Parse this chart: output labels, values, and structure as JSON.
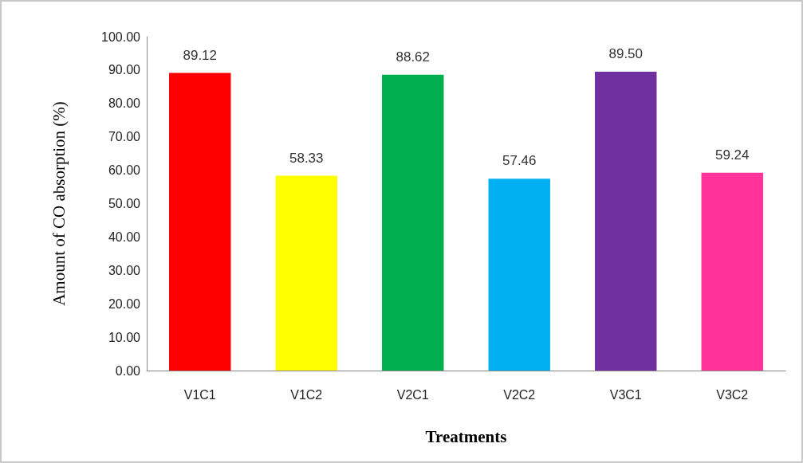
{
  "chart_data": {
    "type": "bar",
    "xlabel": "Treatments",
    "ylabel": "Amount of CO absorption (%)",
    "categories": [
      "V1C1",
      "V1C2",
      "V2C1",
      "V2C2",
      "V3C1",
      "V3C2"
    ],
    "values": [
      89.12,
      58.33,
      88.62,
      57.46,
      89.5,
      59.24
    ],
    "value_labels": [
      "89.12",
      "58.33",
      "88.62",
      "57.46",
      "89.50",
      "59.24"
    ],
    "colors": [
      "#ff0000",
      "#ffff00",
      "#00b050",
      "#00b0f0",
      "#7030a0",
      "#ff3399"
    ],
    "ylim": [
      0,
      100
    ],
    "yticks": [
      {
        "value": 0,
        "label": "0.00"
      },
      {
        "value": 10,
        "label": "10.00"
      },
      {
        "value": 20,
        "label": "20.00"
      },
      {
        "value": 30,
        "label": "30.00"
      },
      {
        "value": 40,
        "label": "40.00"
      },
      {
        "value": 50,
        "label": "50.00"
      },
      {
        "value": 60,
        "label": "60.00"
      },
      {
        "value": 70,
        "label": "70.00"
      },
      {
        "value": 80,
        "label": "80.00"
      },
      {
        "value": 90,
        "label": "90.00"
      },
      {
        "value": 100,
        "label": "100.00"
      }
    ],
    "grid": false
  }
}
